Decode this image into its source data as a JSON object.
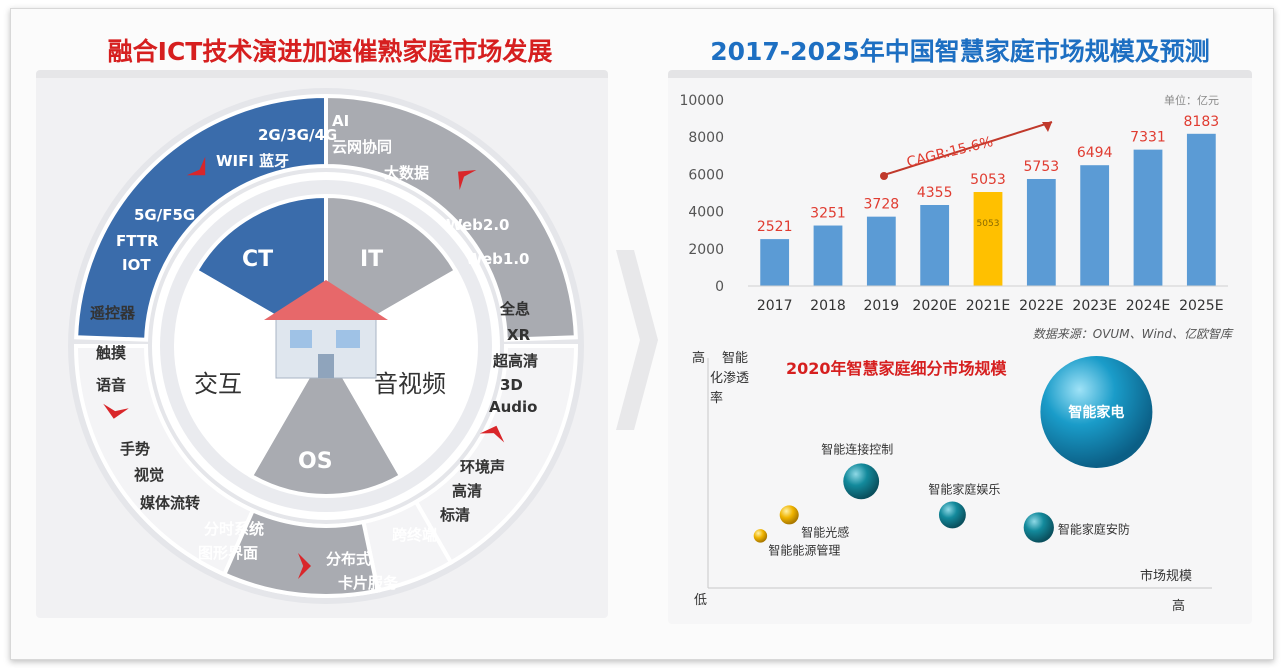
{
  "left": {
    "title": "融合ICT技术演进加速催熟家庭市场发展",
    "core": {
      "ct": "CT",
      "it": "IT",
      "os": "OS",
      "interact": "交互",
      "av": "音视频"
    },
    "ring": {
      "ct": [
        "2G/3G/4G",
        "WIFI 蓝牙",
        "5G/F5G",
        "FTTR",
        "IOT"
      ],
      "it": [
        "AI",
        "云网协同",
        "大数据",
        "Web2.0",
        "Web1.0"
      ],
      "av": [
        "全息",
        "XR",
        "超高清",
        "3D",
        "Audio",
        "环境声",
        "高清",
        "标清"
      ],
      "interact": [
        "遥控器",
        "触摸",
        "语音",
        "手势",
        "视觉",
        "媒体流转"
      ],
      "os": [
        "分时系统",
        "图形界面",
        "分布式",
        "跨终端",
        "卡片服务"
      ]
    }
  },
  "right": {
    "title": "2017-2025年中国智慧家庭市场规模及预测",
    "unit": "单位：亿元",
    "cagr": "CAGR:15.6%",
    "source": "数据来源：OVUM、Wind、亿欧智库",
    "highlight_inner": "5053",
    "bubble_title": "2020年智慧家庭细分市场规模",
    "bubble_axes": {
      "y_high": "高",
      "y_label": "智能化渗透率",
      "x_low": "低",
      "x_label": "市场规模",
      "x_high": "高"
    }
  },
  "colors": {
    "bar": "#5b9bd5",
    "highlight": "#ffc000",
    "label": "#e03c31",
    "ring_blue": "#3a6cab",
    "ring_gray": "#a9abb1",
    "arrow": "#d9262a"
  },
  "chart_data": [
    {
      "type": "bar",
      "categories": [
        "2017",
        "2018",
        "2019",
        "2020E",
        "2021E",
        "2022E",
        "2023E",
        "2024E",
        "2025E"
      ],
      "values": [
        2521,
        3251,
        3728,
        4355,
        5053,
        5753,
        6494,
        7331,
        8183
      ],
      "ylim": [
        0,
        10000
      ],
      "yticks": [
        0,
        2000,
        4000,
        6000,
        8000,
        10000
      ],
      "highlight_index": 4
    },
    {
      "type": "scatter",
      "title": "2020年智慧家庭细分市场规模",
      "xlabel": "市场规模",
      "ylabel": "智能化渗透率",
      "points": [
        {
          "label": "智能家电",
          "x": 0.78,
          "y": 0.8,
          "size": 1.0,
          "color": "#1a8fb5"
        },
        {
          "label": "智能连接控制",
          "x": 0.29,
          "y": 0.47,
          "size": 0.32,
          "color": "#138a9c"
        },
        {
          "label": "智能家庭娱乐",
          "x": 0.48,
          "y": 0.31,
          "size": 0.24,
          "color": "#138a9c"
        },
        {
          "label": "智能家庭安防",
          "x": 0.66,
          "y": 0.25,
          "size": 0.27,
          "color": "#138a9c"
        },
        {
          "label": "智能光感",
          "x": 0.14,
          "y": 0.31,
          "size": 0.17,
          "color": "#f0b400"
        },
        {
          "label": "智能能源管理",
          "x": 0.08,
          "y": 0.21,
          "size": 0.12,
          "color": "#f0b400"
        }
      ]
    }
  ]
}
